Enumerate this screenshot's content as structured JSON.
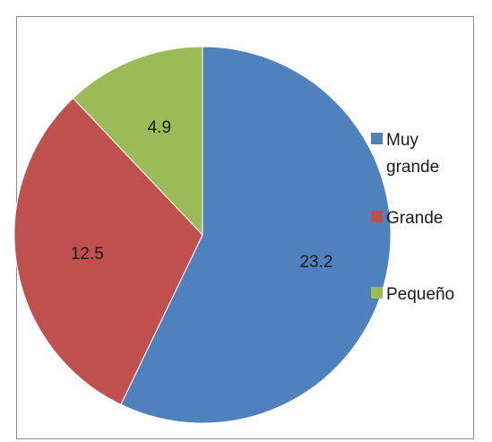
{
  "chart_data": {
    "type": "pie",
    "categories": [
      "Muy grande",
      "Grande",
      "Pequeño"
    ],
    "values": [
      23.2,
      12.5,
      4.9
    ],
    "colors": [
      "#4f81bd",
      "#c0504d",
      "#9bbb59"
    ],
    "start_angle_deg": 0,
    "direction": "clockwise",
    "data_labels": [
      "23.2",
      "12.5",
      "4.9"
    ],
    "legend": {
      "position": "right",
      "entries": [
        "Muy grande",
        "Grande",
        "Pequeño"
      ]
    }
  }
}
